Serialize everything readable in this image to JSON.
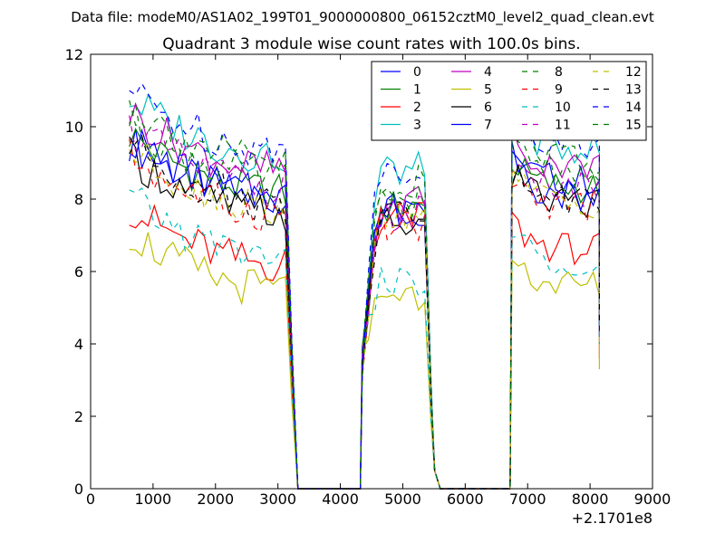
{
  "figure": {
    "suptitle": "Data file: modeM0/AS1A02_199T01_9000000800_06152cztM0_level2_quad_clean.evt"
  },
  "chart_data": {
    "type": "line",
    "title": "Quadrant 3 module wise count rates with 100.0s bins.",
    "xlabel": "",
    "ylabel": "",
    "x_offset_label": "+2.1701e8",
    "xlim": [
      0,
      9000
    ],
    "ylim": [
      0,
      12
    ],
    "xticks": [
      0,
      1000,
      2000,
      3000,
      4000,
      5000,
      6000,
      7000,
      8000,
      9000
    ],
    "yticks": [
      0,
      2,
      4,
      6,
      8,
      10,
      12
    ],
    "legend_position": "top-right",
    "legend_columns": 4,
    "segments": [
      {
        "t_start": 620,
        "t_end": 3120,
        "step": 100
      },
      {
        "t_start": 4350,
        "t_end": 5350,
        "step": 100
      },
      {
        "t_start": 6750,
        "t_end": 8150,
        "step": 100
      }
    ],
    "gaps": [
      [
        3320,
        4320
      ],
      [
        5600,
        6720
      ]
    ],
    "series": [
      {
        "name": "0",
        "color": "#0000ff",
        "dash": "solid",
        "levels": [
          8.0,
          7.6,
          8.5
        ],
        "drop": 7.8
      },
      {
        "name": "1",
        "color": "#008000",
        "dash": "solid",
        "levels": [
          8.2,
          7.8,
          8.3
        ],
        "drop": 6.0
      },
      {
        "name": "2",
        "color": "#ff0000",
        "dash": "solid",
        "levels": [
          6.2,
          7.5,
          6.6
        ],
        "drop": 3.6
      },
      {
        "name": "3",
        "color": "#00bfbf",
        "dash": "solid",
        "levels": [
          9.2,
          8.8,
          9.4
        ],
        "drop": 5.0
      },
      {
        "name": "4",
        "color": "#bf00bf",
        "dash": "solid",
        "levels": [
          8.8,
          7.9,
          8.9
        ],
        "drop": 5.5
      },
      {
        "name": "5",
        "color": "#bfbf00",
        "dash": "solid",
        "levels": [
          5.5,
          5.4,
          5.6
        ],
        "drop": 3.3
      },
      {
        "name": "6",
        "color": "#000000",
        "dash": "solid",
        "levels": [
          7.6,
          7.3,
          7.9
        ],
        "drop": 4.5
      },
      {
        "name": "7",
        "color": "#0000ff",
        "dash": "solid",
        "levels": [
          8.1,
          7.7,
          8.1
        ],
        "drop": 4.2
      },
      {
        "name": "8",
        "color": "#008000",
        "dash": "dashed",
        "levels": [
          8.6,
          8.0,
          8.7
        ],
        "drop": 5.2
      },
      {
        "name": "9",
        "color": "#ff0000",
        "dash": "dashed",
        "levels": [
          7.6,
          7.3,
          7.8
        ],
        "drop": 4.8
      },
      {
        "name": "10",
        "color": "#00bfbf",
        "dash": "dashed",
        "levels": [
          6.4,
          5.7,
          6.3
        ],
        "drop": 4.0
      },
      {
        "name": "11",
        "color": "#bf00bf",
        "dash": "dashed",
        "levels": [
          8.4,
          7.6,
          8.3
        ],
        "drop": 5.3
      },
      {
        "name": "12",
        "color": "#bfbf00",
        "dash": "dashed",
        "levels": [
          7.8,
          7.4,
          7.9
        ],
        "drop": 5.0
      },
      {
        "name": "13",
        "color": "#000000",
        "dash": "dashed",
        "levels": [
          7.9,
          7.5,
          8.0
        ],
        "drop": 4.6
      },
      {
        "name": "14",
        "color": "#0000ff",
        "dash": "dashed",
        "levels": [
          9.4,
          8.9,
          9.6
        ],
        "drop": 6.2
      },
      {
        "name": "15",
        "color": "#008000",
        "dash": "dashed",
        "levels": [
          9.0,
          8.5,
          9.0
        ],
        "drop": 5.8
      }
    ]
  }
}
